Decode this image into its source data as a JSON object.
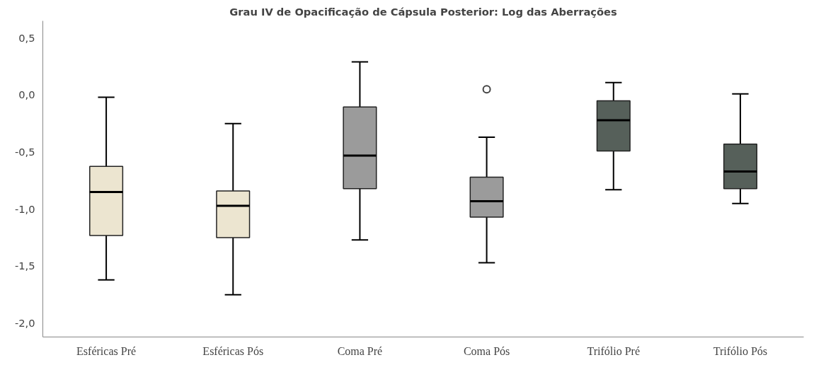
{
  "chart_data": {
    "type": "box",
    "title": "Grau IV de Opacificação de Cápsula Posterior: Log das Aberrações",
    "categories": [
      "Esféricas Pré",
      "Esféricas Pós",
      "Coma Pré",
      "Coma Pós",
      "Trifólio Pré",
      "Trifólio Pós"
    ],
    "colors": [
      "#ece5d0",
      "#ece5d0",
      "#9b9b9b",
      "#9b9b9b",
      "#56605a",
      "#56605a"
    ],
    "boxes": [
      {
        "low": -1.62,
        "q1": -1.23,
        "median": -0.85,
        "q3": -0.625,
        "high": -0.02
      },
      {
        "low": -1.75,
        "q1": -1.25,
        "median": -0.97,
        "q3": -0.84,
        "high": -0.25
      },
      {
        "low": -1.27,
        "q1": -0.82,
        "median": -0.53,
        "q3": -0.105,
        "high": 0.29
      },
      {
        "low": -1.47,
        "q1": -1.07,
        "median": -0.93,
        "q3": -0.72,
        "high": -0.37,
        "outliers": [
          0.05
        ]
      },
      {
        "low": -0.83,
        "q1": -0.49,
        "median": -0.22,
        "q3": -0.05,
        "high": 0.11
      },
      {
        "low": -0.95,
        "q1": -0.82,
        "median": -0.67,
        "q3": -0.43,
        "high": 0.01
      }
    ],
    "ylim": [
      -2.12,
      0.65
    ],
    "yticks": [
      {
        "value": 0.5,
        "label": "0,5"
      },
      {
        "value": 0.0,
        "label": "0,0"
      },
      {
        "value": -0.5,
        "label": "-0,5"
      },
      {
        "value": -1.0,
        "label": "-1,0"
      },
      {
        "value": -1.5,
        "label": "-1,5"
      },
      {
        "value": -2.0,
        "label": "-2,0"
      }
    ],
    "grid": false
  }
}
